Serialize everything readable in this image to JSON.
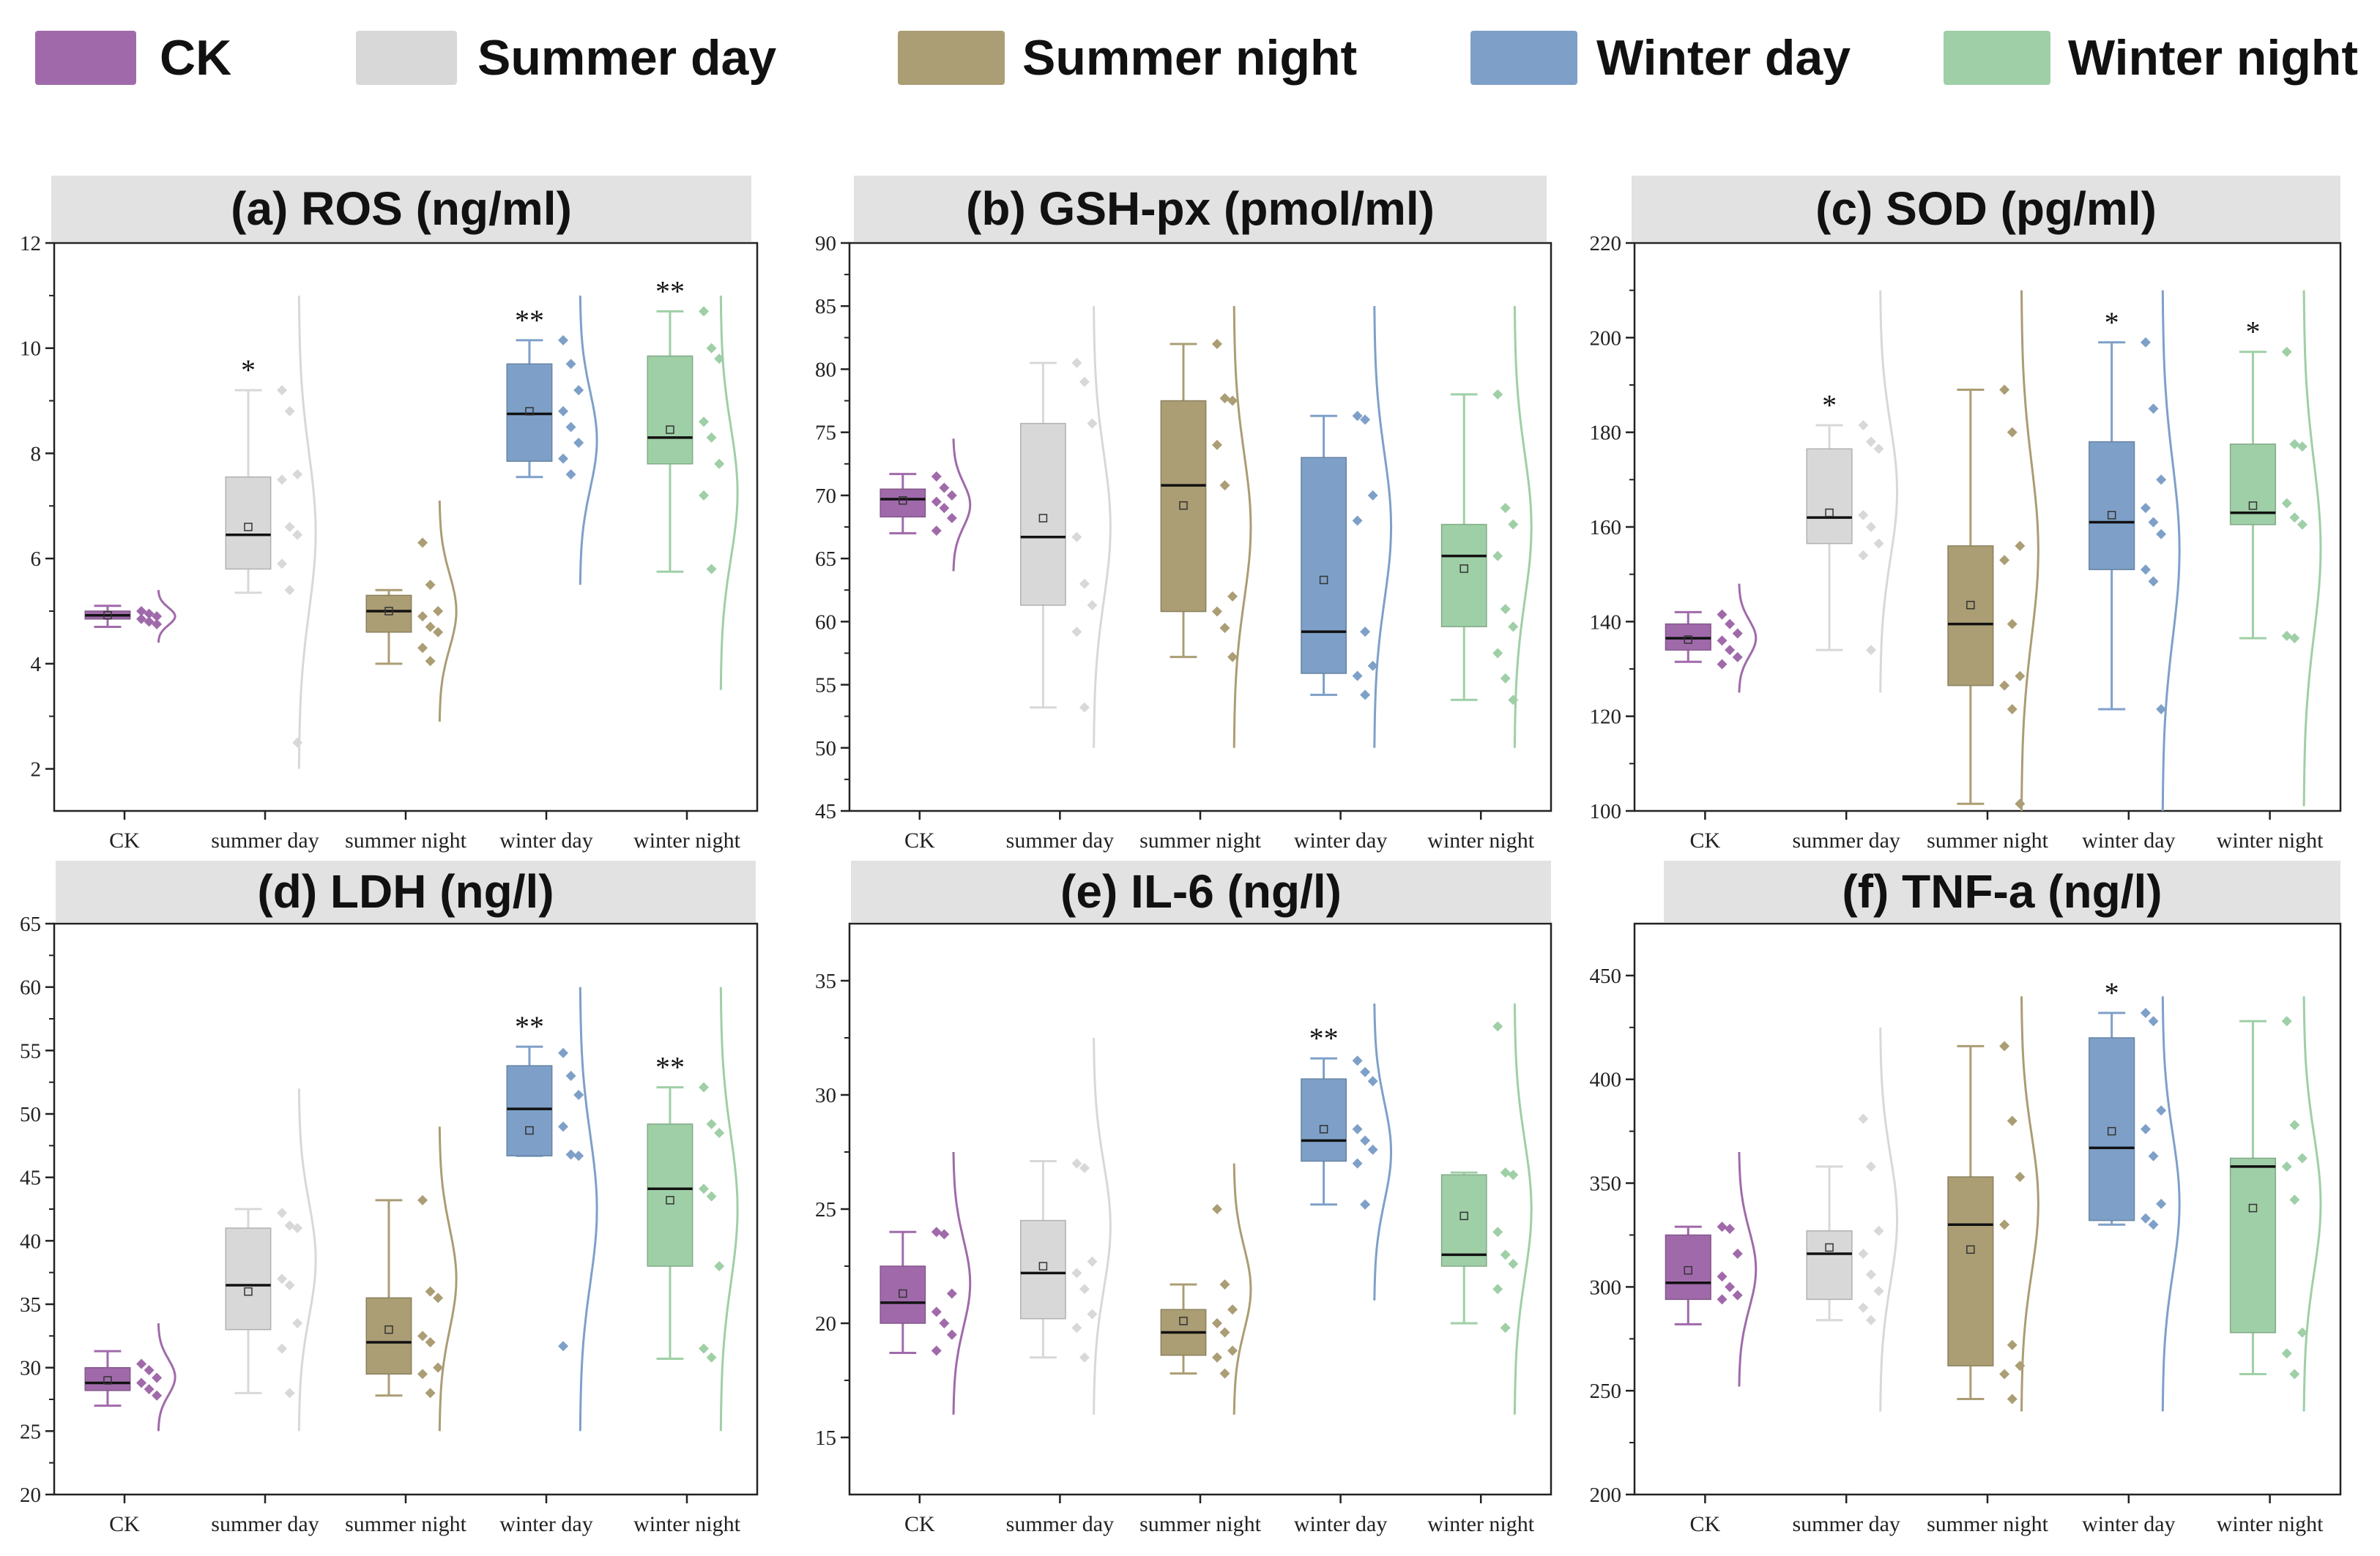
{
  "legend": [
    {
      "label": "CK",
      "color": "#a06aaa"
    },
    {
      "label": "Summer day",
      "color": "#d8d8d8"
    },
    {
      "label": "Summer night",
      "color": "#ab9d74"
    },
    {
      "label": "Winter day",
      "color": "#7ea0c8"
    },
    {
      "label": "Winter night",
      "color": "#9fcfa6"
    }
  ],
  "categories": [
    "CK",
    "summer day",
    "summer night",
    "winter day",
    "winter night"
  ],
  "chart_data": [
    {
      "type": "box",
      "title": "(a) ROS (ng/ml)",
      "ylim": [
        1.2,
        12
      ],
      "yticks": [
        2,
        4,
        6,
        8,
        10,
        12
      ],
      "groups": [
        {
          "q1": 4.85,
          "median": 4.92,
          "q3": 5.0,
          "min": 4.7,
          "max": 5.1,
          "mean": 4.92,
          "sig": "",
          "points": [
            5.0,
            4.95,
            4.9,
            4.85,
            4.8,
            4.75
          ],
          "curve": [
            4.4,
            5.4
          ]
        },
        {
          "q1": 5.8,
          "median": 6.45,
          "q3": 7.55,
          "min": 5.35,
          "max": 9.2,
          "mean": 6.6,
          "sig": "*",
          "points": [
            9.2,
            8.8,
            7.6,
            7.5,
            6.6,
            6.45,
            5.9,
            5.4,
            2.5
          ],
          "curve": [
            2.0,
            11.0
          ]
        },
        {
          "q1": 4.6,
          "median": 5.0,
          "q3": 5.3,
          "min": 4.0,
          "max": 5.4,
          "mean": 5.0,
          "sig": "",
          "points": [
            6.3,
            5.5,
            5.0,
            4.9,
            4.7,
            4.6,
            4.3,
            4.05
          ],
          "curve": [
            2.9,
            7.1
          ]
        },
        {
          "q1": 7.85,
          "median": 8.75,
          "q3": 9.7,
          "min": 7.55,
          "max": 10.15,
          "mean": 8.8,
          "sig": "**",
          "points": [
            10.15,
            9.7,
            9.2,
            8.8,
            8.5,
            8.2,
            7.9,
            7.6
          ],
          "curve": [
            5.5,
            11.0
          ]
        },
        {
          "q1": 7.8,
          "median": 8.3,
          "q3": 9.85,
          "min": 5.75,
          "max": 10.7,
          "mean": 8.45,
          "sig": "**",
          "points": [
            10.7,
            10.0,
            9.8,
            8.6,
            8.3,
            7.8,
            7.2,
            5.8
          ],
          "curve": [
            3.5,
            11.0
          ]
        }
      ]
    },
    {
      "type": "box",
      "title": "(b) GSH-px (pmol/ml)",
      "ylim": [
        45,
        90
      ],
      "yticks": [
        45,
        50,
        55,
        60,
        65,
        70,
        75,
        80,
        85,
        90
      ],
      "groups": [
        {
          "q1": 68.3,
          "median": 69.7,
          "q3": 70.5,
          "min": 67.0,
          "max": 71.7,
          "mean": 69.6,
          "sig": "",
          "points": [
            71.5,
            70.6,
            70.0,
            69.5,
            69.0,
            68.2,
            67.2
          ],
          "curve": [
            64.0,
            74.5
          ]
        },
        {
          "q1": 61.3,
          "median": 66.7,
          "q3": 75.7,
          "min": 53.2,
          "max": 80.5,
          "mean": 68.2,
          "sig": "",
          "points": [
            80.5,
            79.0,
            75.7,
            66.7,
            63.0,
            61.3,
            59.2,
            53.2
          ],
          "curve": [
            50.0,
            85.0
          ]
        },
        {
          "q1": 60.8,
          "median": 70.8,
          "q3": 77.5,
          "min": 57.2,
          "max": 82.0,
          "mean": 69.2,
          "sig": "",
          "points": [
            82.0,
            77.7,
            77.5,
            74.0,
            70.8,
            62.0,
            60.8,
            59.5,
            57.2
          ],
          "curve": [
            50.0,
            85.0
          ]
        },
        {
          "q1": 55.9,
          "median": 59.2,
          "q3": 73.0,
          "min": 54.2,
          "max": 76.3,
          "mean": 63.3,
          "sig": "",
          "points": [
            76.3,
            76.0,
            70.0,
            68.0,
            59.2,
            56.5,
            55.7,
            54.2
          ],
          "curve": [
            50.0,
            85.0
          ]
        },
        {
          "q1": 59.6,
          "median": 65.2,
          "q3": 67.7,
          "min": 53.8,
          "max": 78.0,
          "mean": 64.2,
          "sig": "",
          "points": [
            78.0,
            69.0,
            67.7,
            65.2,
            61.0,
            59.6,
            57.5,
            55.5,
            53.8
          ],
          "curve": [
            50.0,
            85.0
          ]
        }
      ]
    },
    {
      "type": "box",
      "title": "(c) SOD (pg/ml)",
      "ylim": [
        100,
        220
      ],
      "yticks": [
        100,
        120,
        140,
        160,
        180,
        200,
        220
      ],
      "groups": [
        {
          "q1": 134.0,
          "median": 136.5,
          "q3": 139.5,
          "min": 131.5,
          "max": 142.0,
          "mean": 136.2,
          "sig": "",
          "points": [
            141.5,
            139.5,
            137.5,
            136.0,
            134.0,
            132.5,
            131.0
          ],
          "curve": [
            125.0,
            148.0
          ]
        },
        {
          "q1": 156.5,
          "median": 162.0,
          "q3": 176.5,
          "min": 134.0,
          "max": 181.5,
          "mean": 163.0,
          "sig": "*",
          "points": [
            181.5,
            178.0,
            176.5,
            162.5,
            160.0,
            156.5,
            154.0,
            134.0
          ],
          "curve": [
            125.0,
            210.0
          ]
        },
        {
          "q1": 126.5,
          "median": 139.5,
          "q3": 156.0,
          "min": 101.5,
          "max": 189.0,
          "mean": 143.5,
          "sig": "",
          "points": [
            189.0,
            180.0,
            156.0,
            153.0,
            139.5,
            128.5,
            126.5,
            121.5,
            101.5
          ],
          "curve": [
            100.0,
            210.0
          ]
        },
        {
          "q1": 151.0,
          "median": 161.0,
          "q3": 178.0,
          "min": 121.5,
          "max": 199.0,
          "mean": 162.5,
          "sig": "*",
          "points": [
            199.0,
            185.0,
            170.0,
            164.0,
            161.0,
            158.5,
            151.0,
            148.5,
            121.5
          ],
          "curve": [
            100.0,
            210.0
          ]
        },
        {
          "q1": 160.5,
          "median": 163.0,
          "q3": 177.5,
          "min": 136.5,
          "max": 197.0,
          "mean": 164.5,
          "sig": "*",
          "points": [
            197.0,
            177.5,
            177.0,
            165.0,
            162.0,
            160.5,
            137.0,
            136.5
          ],
          "curve": [
            101.0,
            210.0
          ]
        }
      ]
    },
    {
      "type": "box",
      "title": "(d) LDH (ng/l)",
      "ylim": [
        20,
        65
      ],
      "yticks": [
        20,
        25,
        30,
        35,
        40,
        45,
        50,
        55,
        60,
        65
      ],
      "groups": [
        {
          "q1": 28.2,
          "median": 28.8,
          "q3": 30.0,
          "min": 27.0,
          "max": 31.3,
          "mean": 29.0,
          "sig": "",
          "points": [
            30.3,
            29.8,
            29.2,
            28.8,
            28.3,
            27.8
          ],
          "curve": [
            25.0,
            33.5
          ]
        },
        {
          "q1": 33.0,
          "median": 36.5,
          "q3": 41.0,
          "min": 28.0,
          "max": 42.5,
          "mean": 36.0,
          "sig": "",
          "points": [
            42.2,
            41.2,
            41.0,
            37.0,
            36.5,
            33.5,
            31.5,
            28.0
          ],
          "curve": [
            25.0,
            52.0
          ]
        },
        {
          "q1": 29.5,
          "median": 32.0,
          "q3": 35.5,
          "min": 27.8,
          "max": 43.2,
          "mean": 33.0,
          "sig": "",
          "points": [
            43.2,
            36.0,
            35.5,
            32.5,
            32.0,
            30.0,
            29.5,
            28.0
          ],
          "curve": [
            25.0,
            49.0
          ]
        },
        {
          "q1": 46.7,
          "median": 50.4,
          "q3": 53.8,
          "min": 46.7,
          "max": 55.3,
          "mean": 48.7,
          "sig": "**",
          "points": [
            54.8,
            53.0,
            51.5,
            49.0,
            46.8,
            46.7,
            31.7
          ],
          "curve": [
            25.0,
            60.0
          ]
        },
        {
          "q1": 38.0,
          "median": 44.1,
          "q3": 49.2,
          "min": 30.7,
          "max": 52.1,
          "mean": 43.2,
          "sig": "**",
          "points": [
            52.1,
            49.2,
            48.5,
            44.1,
            43.5,
            38.0,
            31.5,
            30.8
          ],
          "curve": [
            25.0,
            60.0
          ]
        }
      ]
    },
    {
      "type": "box",
      "title": "(e) IL-6 (ng/l)",
      "ylim": [
        12.5,
        37.5
      ],
      "yticks": [
        15,
        20,
        25,
        30,
        35
      ],
      "groups": [
        {
          "q1": 20.0,
          "median": 20.9,
          "q3": 22.5,
          "min": 18.7,
          "max": 24.0,
          "mean": 21.3,
          "sig": "",
          "points": [
            24.0,
            23.9,
            21.3,
            20.5,
            20.0,
            19.5,
            18.8
          ],
          "curve": [
            16.0,
            27.5
          ]
        },
        {
          "q1": 20.2,
          "median": 22.2,
          "q3": 24.5,
          "min": 18.5,
          "max": 27.1,
          "mean": 22.5,
          "sig": "",
          "points": [
            27.0,
            26.8,
            22.7,
            22.2,
            21.5,
            20.4,
            19.8,
            18.5
          ],
          "curve": [
            16.0,
            32.5
          ]
        },
        {
          "q1": 18.6,
          "median": 19.6,
          "q3": 20.6,
          "min": 17.8,
          "max": 21.7,
          "mean": 20.1,
          "sig": "",
          "points": [
            25.0,
            21.7,
            20.6,
            20.0,
            19.6,
            18.8,
            18.5,
            17.8
          ],
          "curve": [
            16.0,
            27.0
          ]
        },
        {
          "q1": 27.1,
          "median": 28.0,
          "q3": 30.7,
          "min": 25.2,
          "max": 31.6,
          "mean": 28.5,
          "sig": "**",
          "points": [
            31.5,
            31.0,
            30.6,
            28.5,
            28.0,
            27.6,
            27.0,
            25.2
          ],
          "curve": [
            21.0,
            34.0
          ]
        },
        {
          "q1": 22.5,
          "median": 23.0,
          "q3": 26.5,
          "min": 20.0,
          "max": 26.6,
          "mean": 24.7,
          "sig": "",
          "points": [
            33.0,
            26.6,
            26.5,
            24.0,
            23.0,
            22.6,
            21.5,
            19.8
          ],
          "curve": [
            16.0,
            34.0
          ]
        }
      ]
    },
    {
      "type": "box",
      "title": "(f) TNF-a (ng/l)",
      "ylim": [
        200,
        475
      ],
      "yticks": [
        200,
        250,
        300,
        350,
        400,
        450
      ],
      "groups": [
        {
          "q1": 294.0,
          "median": 302.0,
          "q3": 325.0,
          "min": 282.0,
          "max": 329.0,
          "mean": 308.0,
          "sig": "",
          "points": [
            329.0,
            328.0,
            316.0,
            305.0,
            300.0,
            296.0,
            294.0
          ],
          "curve": [
            252.0,
            365.0
          ]
        },
        {
          "q1": 294.0,
          "median": 316.0,
          "q3": 327.0,
          "min": 284.0,
          "max": 358.0,
          "mean": 319.0,
          "sig": "",
          "points": [
            381.0,
            358.0,
            327.0,
            316.0,
            306.0,
            298.0,
            290.0,
            284.0
          ],
          "curve": [
            240.0,
            425.0
          ]
        },
        {
          "q1": 262.0,
          "median": 330.0,
          "q3": 353.0,
          "min": 246.0,
          "max": 416.0,
          "mean": 318.0,
          "sig": "",
          "points": [
            416.0,
            380.0,
            353.0,
            330.0,
            272.0,
            262.0,
            258.0,
            246.0
          ],
          "curve": [
            240.0,
            440.0
          ]
        },
        {
          "q1": 332.0,
          "median": 367.0,
          "q3": 420.0,
          "min": 330.0,
          "max": 432.0,
          "mean": 375.0,
          "sig": "*",
          "points": [
            432.0,
            428.0,
            385.0,
            376.0,
            363.0,
            340.0,
            333.0,
            330.0
          ],
          "curve": [
            240.0,
            440.0
          ]
        },
        {
          "q1": 278.0,
          "median": 358.0,
          "q3": 362.0,
          "min": 258.0,
          "max": 428.0,
          "mean": 338.0,
          "sig": "",
          "points": [
            428.0,
            378.0,
            362.0,
            358.0,
            342.0,
            278.0,
            268.0,
            258.0
          ],
          "curve": [
            240.0,
            440.0
          ]
        }
      ]
    }
  ]
}
